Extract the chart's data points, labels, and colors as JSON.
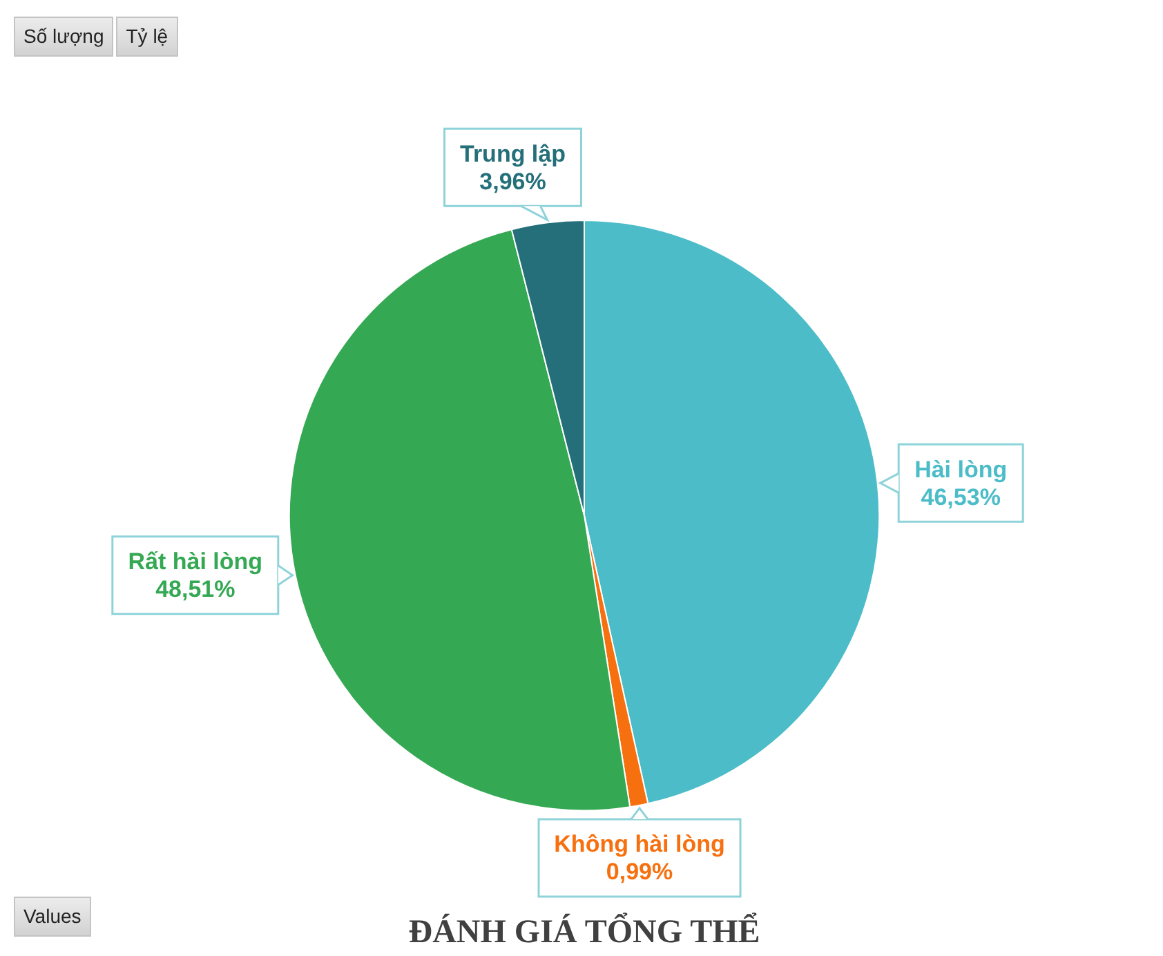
{
  "chart_data": {
    "type": "pie",
    "title": "ĐÁNH GIÁ TỔNG THỂ",
    "categories": [
      "Hài lòng",
      "Không hài lòng",
      "Rất hài lòng",
      "Trung lập"
    ],
    "values": [
      46.53,
      0.99,
      48.51,
      3.96
    ],
    "colors": [
      "#4bbcc8",
      "#f7700f",
      "#34a853",
      "#246f79"
    ],
    "value_labels": [
      "46,53%",
      "0,99%",
      "48,51%",
      "3,96%"
    ],
    "annotations": [
      "Số lượng",
      "Tỷ lệ",
      "Values"
    ]
  }
}
